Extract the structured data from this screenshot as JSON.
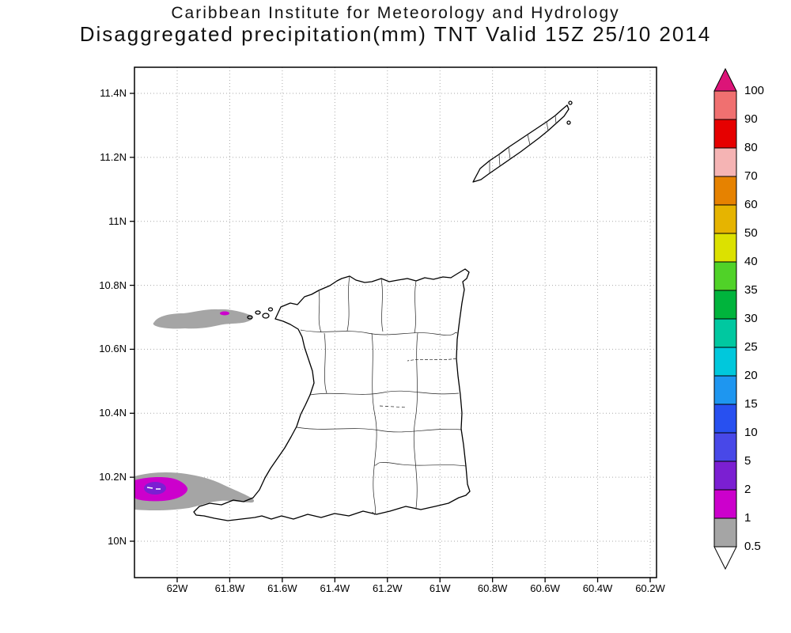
{
  "title": {
    "line1": "Caribbean Institute for Meteorology and Hydrology",
    "line2": "Disaggregated precipitation(mm) TNT Valid 15Z 25/10 2014"
  },
  "axes": {
    "lat": {
      "labels": [
        "10N",
        "10.2N",
        "10.4N",
        "10.6N",
        "10.8N",
        "11N",
        "11.2N",
        "11.4N"
      ],
      "ticks": [
        10,
        10.2,
        10.4,
        10.6,
        10.8,
        11,
        11.2,
        11.4
      ]
    },
    "lon": {
      "labels": [
        "62W",
        "61.8W",
        "61.6W",
        "61.4W",
        "61.2W",
        "61W",
        "60.8W",
        "60.6W",
        "60.4W",
        "60.2W"
      ],
      "ticks": [
        62,
        61.8,
        61.6,
        61.4,
        61.2,
        61,
        60.8,
        60.6,
        60.4,
        60.2
      ]
    }
  },
  "colorbar": {
    "unit": "mm",
    "labels": [
      "0.5",
      "1",
      "2",
      "5",
      "10",
      "15",
      "20",
      "25",
      "30",
      "35",
      "40",
      "50",
      "60",
      "70",
      "80",
      "90",
      "100"
    ],
    "colors": [
      "#a5a5a5",
      "#cc00cc",
      "#7b1fd2",
      "#4848e8",
      "#2850f0",
      "#1e96f0",
      "#00c8dc",
      "#00c8a0",
      "#00b43c",
      "#50d228",
      "#dce100",
      "#e6b400",
      "#e68200",
      "#f5b4b4",
      "#e60000",
      "#f07070"
    ],
    "under_color": "#ffffff",
    "over_color": "#dc1478"
  },
  "precip_cells": [
    {
      "area": "west of northwest Trinidad, near 10.7N 61.8W",
      "categories": [
        "0.5-1",
        "1-2"
      ]
    },
    {
      "area": "west of southwest Trinidad, near 10.15N 62W",
      "categories": [
        "0.5-1",
        "1-2",
        "2-5"
      ]
    }
  ]
}
